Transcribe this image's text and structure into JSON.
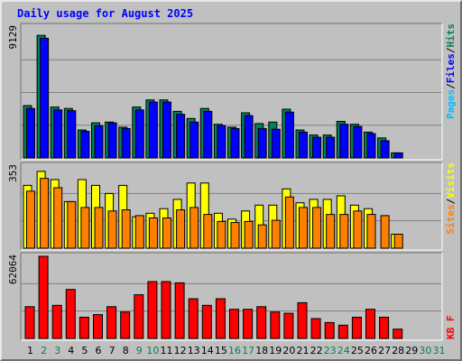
{
  "chart_data": {
    "type": "bar",
    "title": "Daily usage for August 2025",
    "categories": [
      "1",
      "2",
      "3",
      "4",
      "5",
      "6",
      "7",
      "8",
      "9",
      "10",
      "11",
      "12",
      "13",
      "14",
      "15",
      "16",
      "17",
      "18",
      "19",
      "20",
      "21",
      "22",
      "23",
      "24",
      "25",
      "26",
      "27",
      "28",
      "29",
      "30",
      "31"
    ],
    "weekend_days": [
      "2",
      "3",
      "9",
      "10",
      "16",
      "17",
      "23",
      "24",
      "30",
      "31"
    ],
    "colors": {
      "title": "#0000ff",
      "background": "#c0c0c0",
      "plot_background": "#c0c0c0",
      "grid": "#808080",
      "weekday_label": "#000000",
      "weekend_label": "#00805c",
      "hits": "#00805c",
      "files": "#0000ff",
      "pages": "#00c0ff",
      "visits": "#ffff00",
      "sites": "#ff8000",
      "kbf": "#ff0000"
    },
    "panels": [
      {
        "max_label": "9129",
        "ylim": [
          0,
          9129
        ],
        "legend": [
          "Pages",
          "/",
          "Files",
          "/",
          "Hits"
        ],
        "series": [
          {
            "name": "Hits",
            "values": [
              3650,
              8550,
              3550,
              3450,
              1950,
              2450,
              2500,
              2150,
              3550,
              4050,
              4050,
              3250,
              2750,
              3450,
              2350,
              2150,
              3150,
              2400,
              2500,
              3400,
              1950,
              1600,
              1600,
              2550,
              2350,
              1800,
              1400,
              350,
              0,
              0,
              0
            ]
          },
          {
            "name": "Files",
            "values": [
              3450,
              8350,
              3350,
              3300,
              1850,
              2250,
              2450,
              2050,
              3350,
              3900,
              3900,
              3050,
              2500,
              3250,
              2250,
              2050,
              2950,
              2050,
              2000,
              3200,
              1800,
              1450,
              1450,
              2350,
              2200,
              1700,
              1200,
              350,
              0,
              0,
              0
            ]
          },
          {
            "name": "Pages",
            "values": [
              0,
              0,
              0,
              0,
              0,
              0,
              0,
              0,
              0,
              0,
              0,
              0,
              0,
              0,
              0,
              0,
              0,
              0,
              0,
              0,
              0,
              0,
              0,
              0,
              0,
              0,
              0,
              0,
              0,
              0,
              0
            ]
          }
        ]
      },
      {
        "max_label": "353",
        "ylim": [
          0,
          353
        ],
        "legend": [
          "Sites",
          "/",
          "Visits"
        ],
        "series": [
          {
            "name": "Visits",
            "values": [
              270,
              330,
              295,
              200,
              295,
              270,
              235,
              270,
              135,
              150,
              170,
              210,
              280,
              280,
              150,
              125,
              160,
              185,
              185,
              255,
              195,
              210,
              210,
              225,
              185,
              170,
              0,
              60,
              0,
              0,
              0
            ]
          },
          {
            "name": "Sites",
            "values": [
              245,
              300,
              260,
              200,
              175,
              175,
              160,
              165,
              140,
              130,
              130,
              165,
              175,
              145,
              115,
              110,
              115,
              100,
              120,
              220,
              175,
              175,
              145,
              145,
              160,
              145,
              140,
              60,
              0,
              0,
              0
            ]
          }
        ]
      },
      {
        "max_label": "62064",
        "ylim": [
          0,
          62064
        ],
        "legend": [
          "KB",
          "F"
        ],
        "series": [
          {
            "name": "KB F",
            "values": [
              24000,
              62064,
              25000,
              37000,
              16000,
              18000,
              24000,
              20000,
              33000,
              43000,
              43000,
              42000,
              30000,
              25000,
              30000,
              22000,
              22000,
              24000,
              20000,
              19000,
              27000,
              15000,
              12000,
              10000,
              16000,
              22000,
              16000,
              7000,
              0,
              0,
              0
            ]
          }
        ]
      }
    ]
  }
}
